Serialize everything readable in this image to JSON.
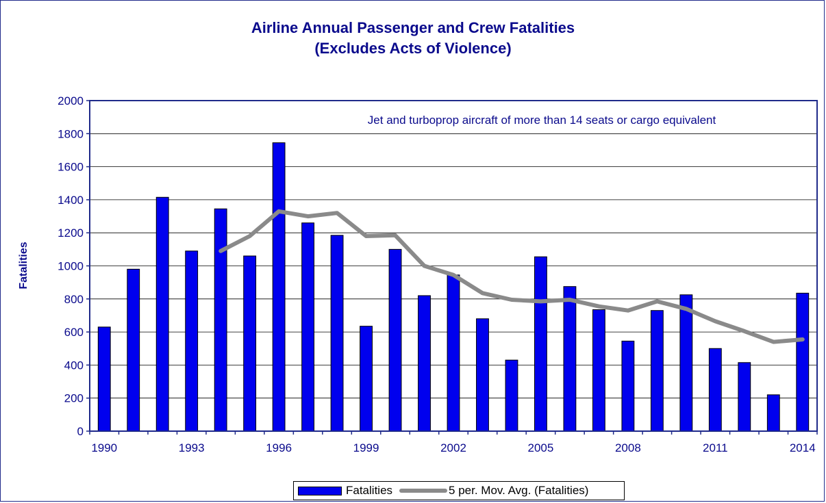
{
  "chart_data": {
    "type": "bar",
    "title_line1": "Airline Annual Passenger and Crew Fatalities",
    "title_line2": "(Excludes Acts of Violence)",
    "ylabel": "Fatalities",
    "xlabel": "",
    "annotation": "Jet and turboprop aircraft of more than 14 seats or cargo equivalent",
    "ylim": [
      0,
      2000
    ],
    "yticks": [
      0,
      200,
      400,
      600,
      800,
      1000,
      1200,
      1400,
      1600,
      1800,
      2000
    ],
    "x": [
      1990,
      1991,
      1992,
      1993,
      1994,
      1995,
      1996,
      1997,
      1998,
      1999,
      2000,
      2001,
      2002,
      2003,
      2004,
      2005,
      2006,
      2007,
      2008,
      2009,
      2010,
      2011,
      2012,
      2013,
      2014
    ],
    "xtick_labels": [
      "1990",
      "1993",
      "1996",
      "1999",
      "2002",
      "2005",
      "2008",
      "2011",
      "2014"
    ],
    "grid": true,
    "legend_position": "bottom",
    "series": [
      {
        "name": "Fatalities",
        "type": "bar",
        "color": "#0000ee",
        "values": [
          630,
          980,
          1415,
          1090,
          1345,
          1060,
          1745,
          1260,
          1185,
          635,
          1100,
          820,
          945,
          680,
          430,
          1055,
          875,
          735,
          545,
          730,
          825,
          500,
          415,
          220,
          835
        ]
      },
      {
        "name": "5 per. Mov. Avg. (Fatalities)",
        "type": "line",
        "color": "#8a8a8a",
        "values": [
          null,
          null,
          null,
          null,
          1090,
          1180,
          1330,
          1300,
          1320,
          1180,
          1185,
          1000,
          945,
          835,
          795,
          785,
          795,
          755,
          730,
          785,
          740,
          665,
          605,
          540,
          555
        ]
      }
    ]
  }
}
